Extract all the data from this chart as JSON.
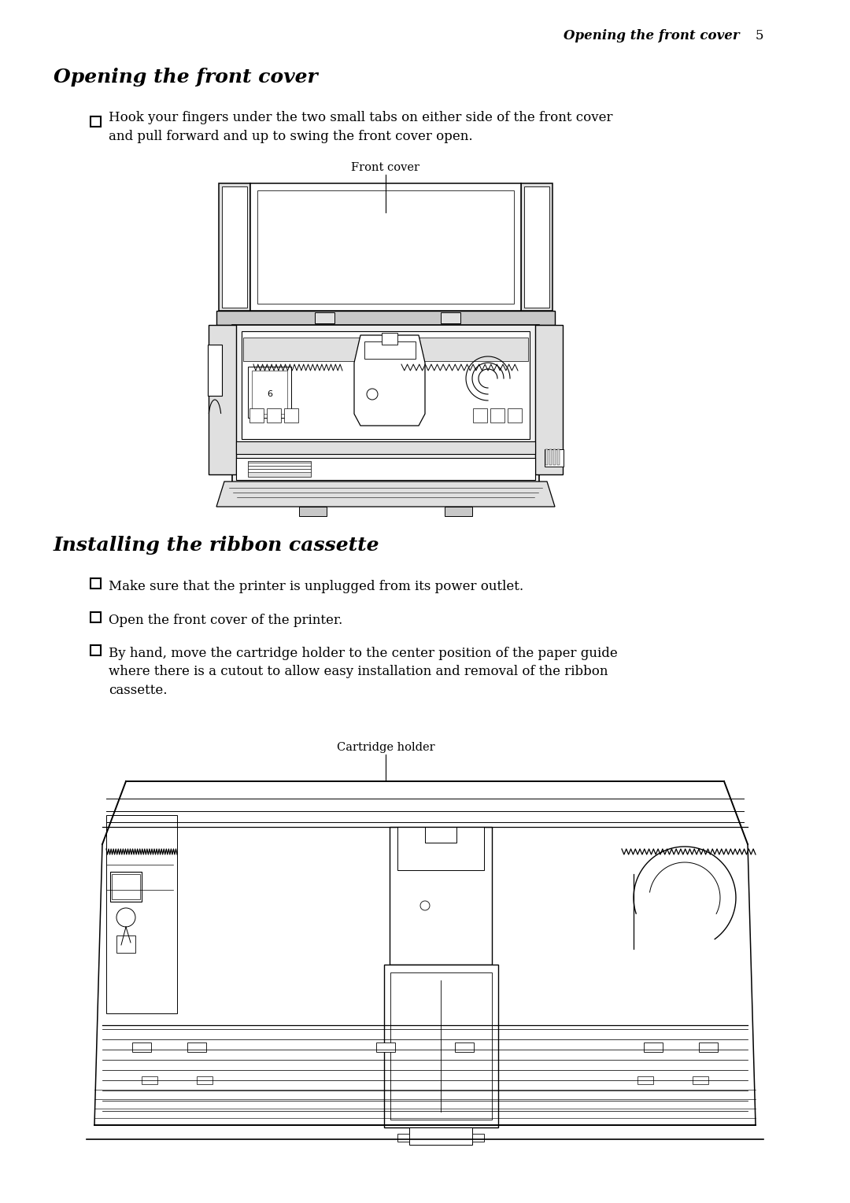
{
  "page_header_italic": "Opening the front cover",
  "page_number": "5",
  "section1_title": "Opening the front cover",
  "section1_bullet": "Hook your fingers under the two small tabs on either side of the front cover\nand pull forward and up to swing the front cover open.",
  "section1_fig_label": "Front cover",
  "section2_title": "Installing the ribbon cassette",
  "section2_bullet1": "Make sure that the printer is unplugged from its power outlet.",
  "section2_bullet2": "Open the front cover of the printer.",
  "section2_bullet3": "By hand, move the cartridge holder to the center position of the paper guide\nwhere there is a cutout to allow easy installation and removal of the ribbon\ncassette.",
  "section2_fig_label": "Cartridge holder",
  "bg_color": "#ffffff",
  "ink": "#000000",
  "gray1": "#c8c8c8",
  "gray2": "#e0e0e0",
  "gray3": "#f0f0f0"
}
